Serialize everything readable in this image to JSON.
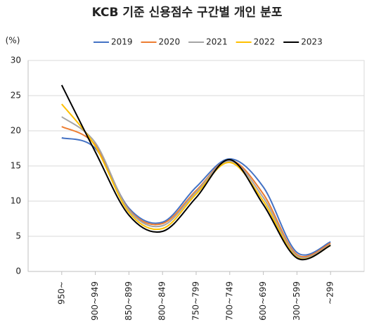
{
  "chart_data": {
    "type": "line",
    "title": "KCB 기준 신용점수 구간별 개인 분포",
    "y_label": "(%)",
    "categories": [
      "950~",
      "900~949",
      "850~899",
      "800~849",
      "750~799",
      "700~749",
      "600~699",
      "300~599",
      "~299"
    ],
    "series": [
      {
        "name": "2019",
        "color": "#4472c4",
        "values": [
          19.0,
          17.5,
          9.0,
          7.0,
          12.0,
          16.0,
          12.0,
          2.7,
          4.2
        ]
      },
      {
        "name": "2020",
        "color": "#ed7d31",
        "values": [
          20.6,
          18.0,
          8.8,
          6.8,
          11.5,
          15.8,
          11.0,
          2.4,
          4.0
        ]
      },
      {
        "name": "2021",
        "color": "#a5a5a5",
        "values": [
          22.0,
          18.3,
          8.7,
          6.5,
          11.3,
          15.7,
          10.5,
          2.2,
          3.8
        ]
      },
      {
        "name": "2022",
        "color": "#ffc000",
        "values": [
          23.8,
          17.8,
          8.4,
          6.1,
          11.0,
          15.5,
          10.0,
          2.0,
          3.7
        ]
      },
      {
        "name": "2023",
        "color": "#000000",
        "values": [
          26.5,
          17.0,
          8.0,
          5.7,
          10.5,
          15.9,
          9.5,
          1.9,
          3.7
        ]
      }
    ],
    "ylim": [
      0,
      30
    ],
    "yticks": [
      0,
      5,
      10,
      15,
      20,
      25,
      30
    ],
    "grid": true,
    "smooth": true
  }
}
